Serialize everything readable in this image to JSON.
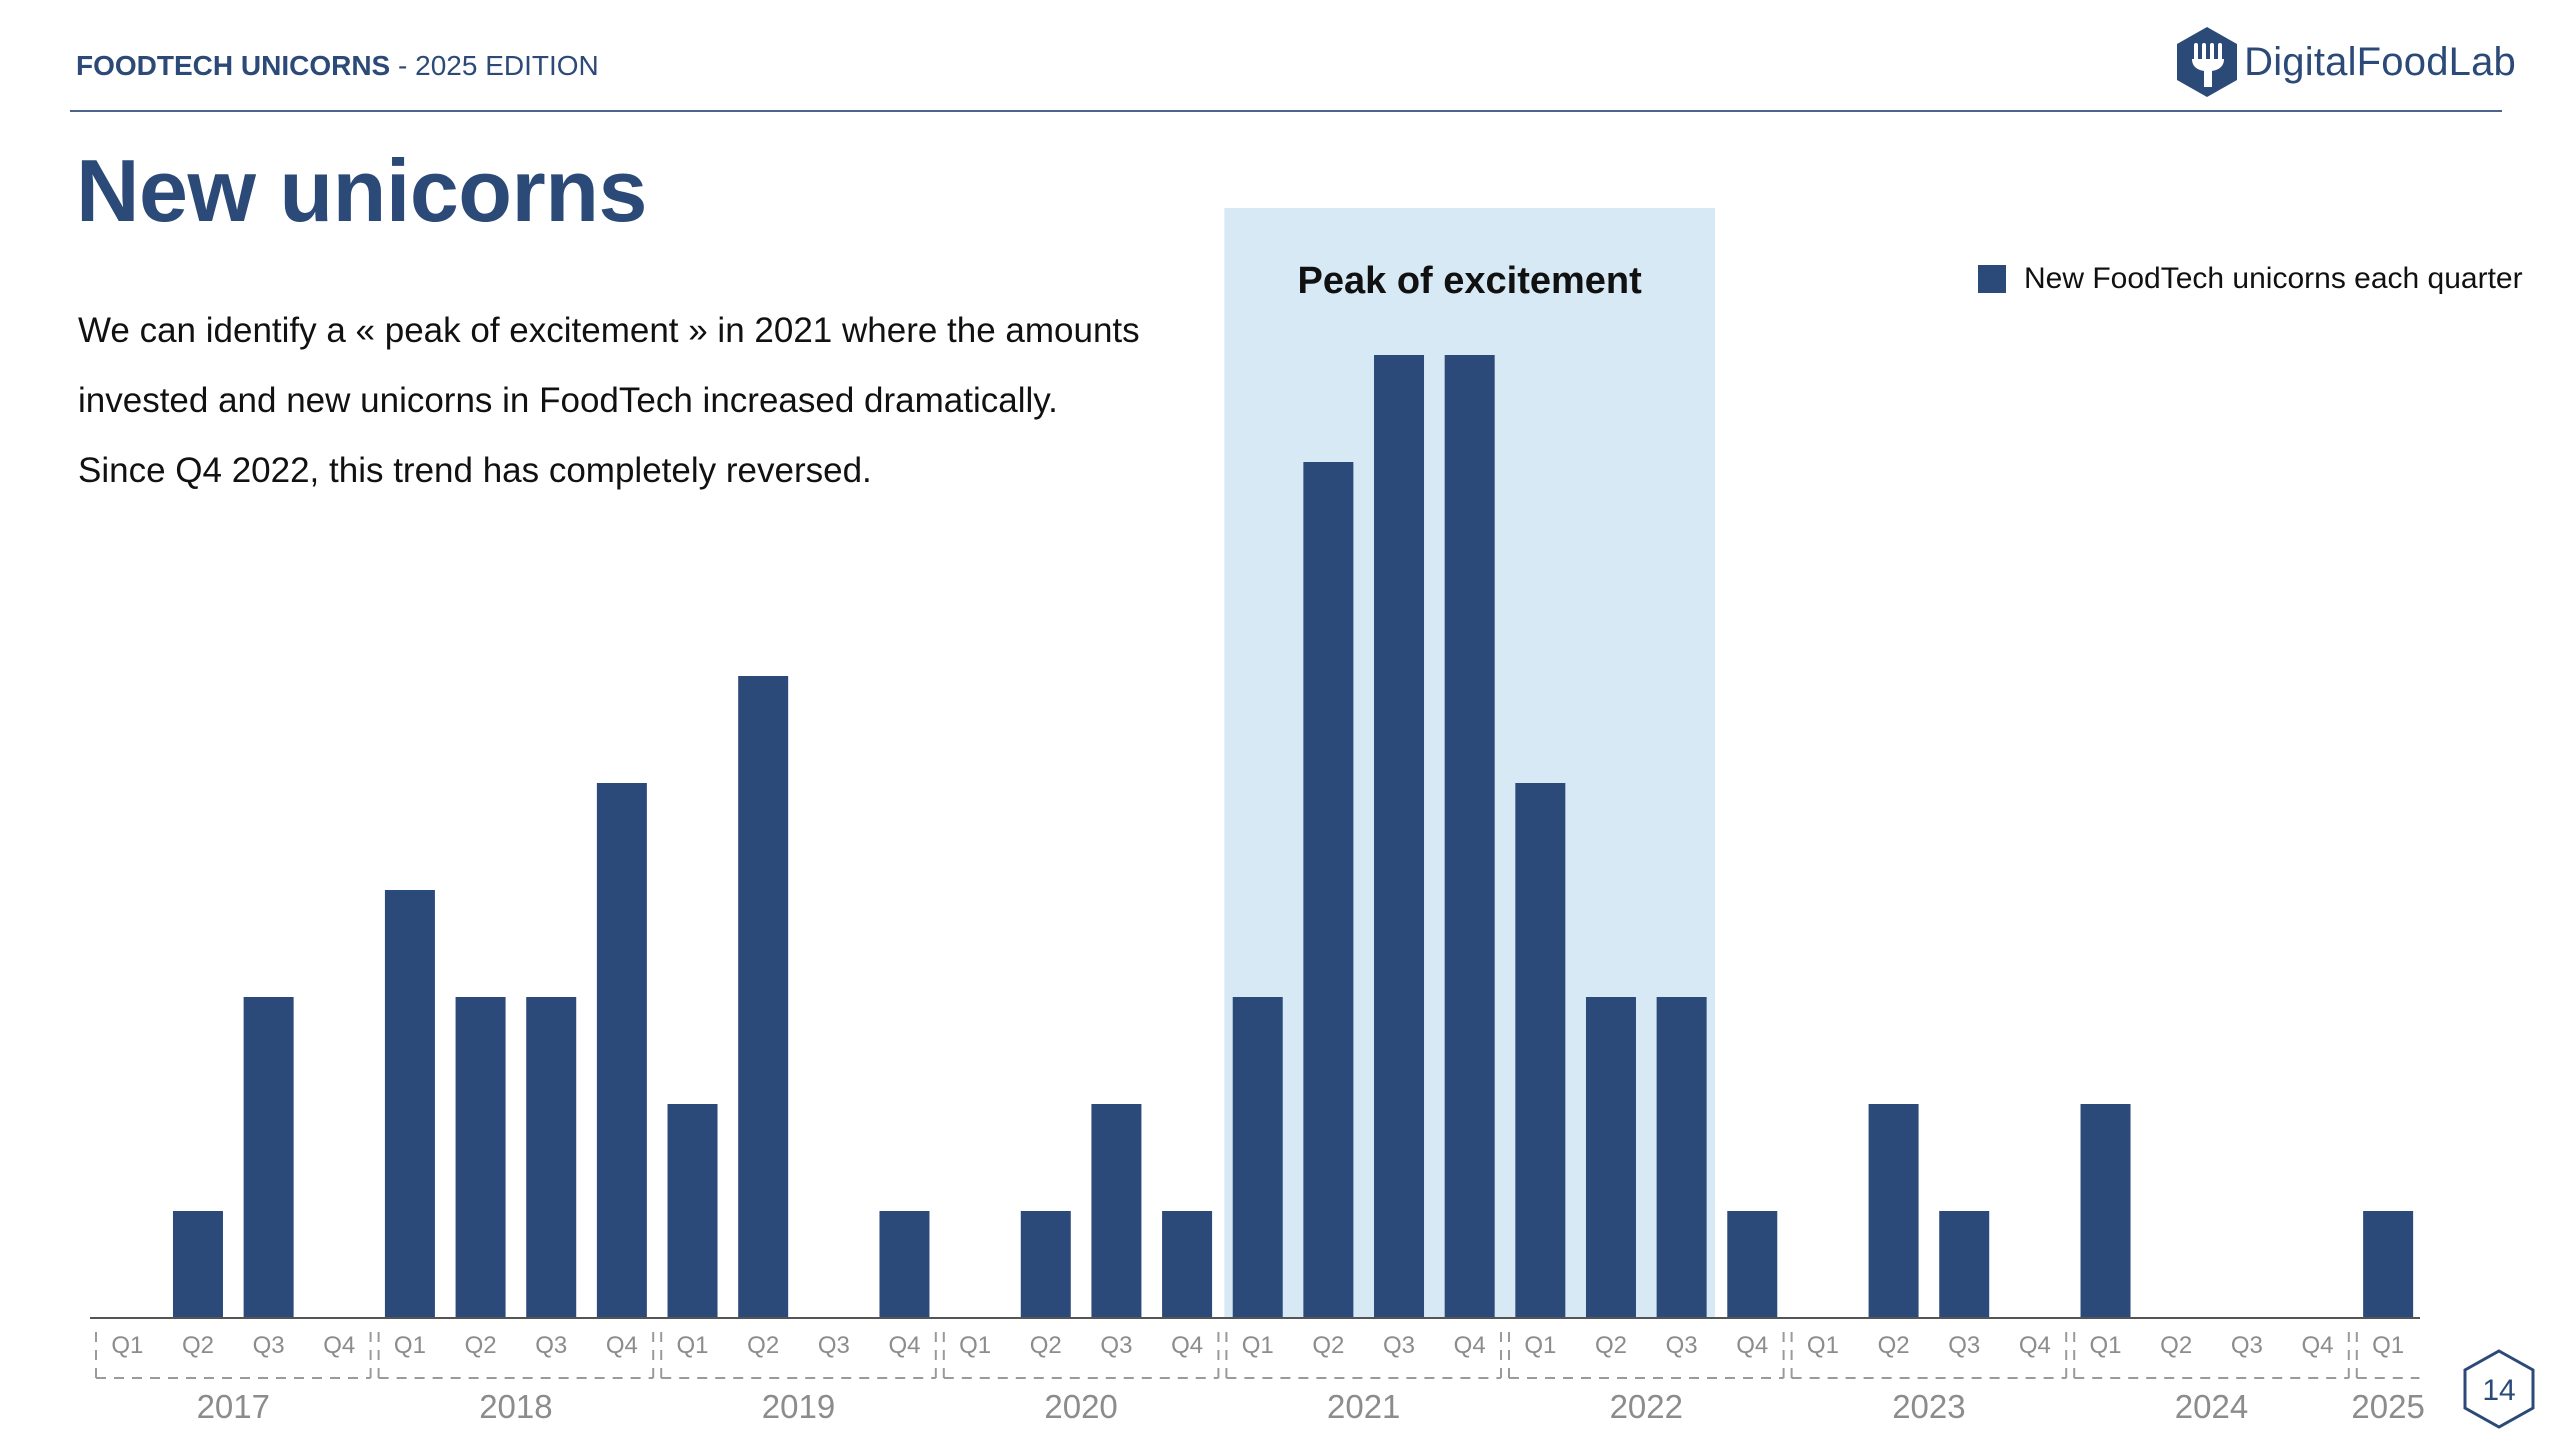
{
  "header": {
    "report_title": "FOODTECH UNICORNS",
    "separator": " - ",
    "edition": "2025 EDITION",
    "brand": "DigitalFoodLab"
  },
  "page": {
    "title": "New unicorns",
    "description": [
      "We can identify a « peak of excitement » in 2021 where the amounts",
      "invested and new unicorns in FoodTech increased dramatically.",
      "Since Q4 2022, this trend has completely reversed."
    ],
    "page_number": "14"
  },
  "colors": {
    "brand": "#2c4a78",
    "bar": "#2c4a79",
    "highlight": "#d6e9f4",
    "axis_text": "#8c8c8c"
  },
  "chart_data": {
    "type": "bar",
    "legend": "New FoodTech unicorns each quarter",
    "legend_position": "top-right",
    "annotation": {
      "label": "Peak of excitement",
      "from": "2021 Q1",
      "to": "2022 Q3"
    },
    "categories": [
      "2017 Q1",
      "2017 Q2",
      "2017 Q3",
      "2017 Q4",
      "2018 Q1",
      "2018 Q2",
      "2018 Q3",
      "2018 Q4",
      "2019 Q1",
      "2019 Q2",
      "2019 Q3",
      "2019 Q4",
      "2020 Q1",
      "2020 Q2",
      "2020 Q3",
      "2020 Q4",
      "2021 Q1",
      "2021 Q2",
      "2021 Q3",
      "2021 Q4",
      "2022 Q1",
      "2022 Q2",
      "2022 Q3",
      "2022 Q4",
      "2023 Q1",
      "2023 Q2",
      "2023 Q3",
      "2023 Q4",
      "2024 Q1",
      "2024 Q2",
      "2024 Q3",
      "2024 Q4",
      "2025 Q1"
    ],
    "quarter_labels": [
      "Q1",
      "Q2",
      "Q3",
      "Q4",
      "Q1",
      "Q2",
      "Q3",
      "Q4",
      "Q1",
      "Q2",
      "Q3",
      "Q4",
      "Q1",
      "Q2",
      "Q3",
      "Q4",
      "Q1",
      "Q2",
      "Q3",
      "Q4",
      "Q1",
      "Q2",
      "Q3",
      "Q4",
      "Q1",
      "Q2",
      "Q3",
      "Q4",
      "Q1",
      "Q2",
      "Q3",
      "Q4",
      "Q1"
    ],
    "years": [
      "2017",
      "2018",
      "2019",
      "2020",
      "2021",
      "2022",
      "2023",
      "2024",
      "2025"
    ],
    "series": [
      {
        "name": "New FoodTech unicorns each quarter",
        "values": [
          0,
          1,
          3,
          0,
          4,
          3,
          3,
          5,
          2,
          6,
          0,
          1,
          0,
          1,
          2,
          1,
          3,
          8,
          9,
          9,
          5,
          3,
          3,
          1,
          0,
          2,
          1,
          0,
          2,
          0,
          0,
          0,
          1
        ]
      }
    ],
    "ylim": [
      0,
      9
    ],
    "grid": false,
    "y_axis_shown": false
  }
}
